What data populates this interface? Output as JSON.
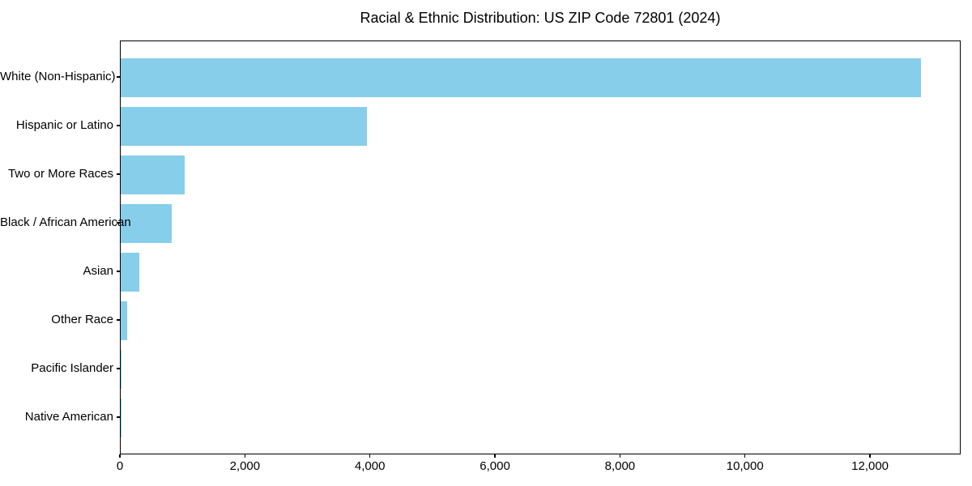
{
  "chart_data": {
    "type": "bar",
    "orientation": "horizontal",
    "title": "Racial & Ethnic Distribution: US ZIP Code 72801 (2024)",
    "categories": [
      "White (Non-Hispanic)",
      "Hispanic or Latino",
      "Two or More Races",
      "Black / African American",
      "Asian",
      "Other Race",
      "Pacific Islander",
      "Native American"
    ],
    "values": [
      12800,
      3940,
      1020,
      820,
      300,
      105,
      15,
      4
    ],
    "xlabel": "",
    "ylabel": "",
    "xlim": [
      0,
      13450
    ],
    "x_ticks": [
      {
        "value": 0,
        "label": "0"
      },
      {
        "value": 2000,
        "label": "2,000"
      },
      {
        "value": 4000,
        "label": "4,000"
      },
      {
        "value": 6000,
        "label": "6,000"
      },
      {
        "value": 8000,
        "label": "8,000"
      },
      {
        "value": 10000,
        "label": "10,000"
      },
      {
        "value": 12000,
        "label": "12,000"
      }
    ],
    "grid": false,
    "legend": "none",
    "colors": {
      "bar": "#87CEEB",
      "axis": "#000000",
      "text": "#000000",
      "background": "#ffffff"
    }
  }
}
